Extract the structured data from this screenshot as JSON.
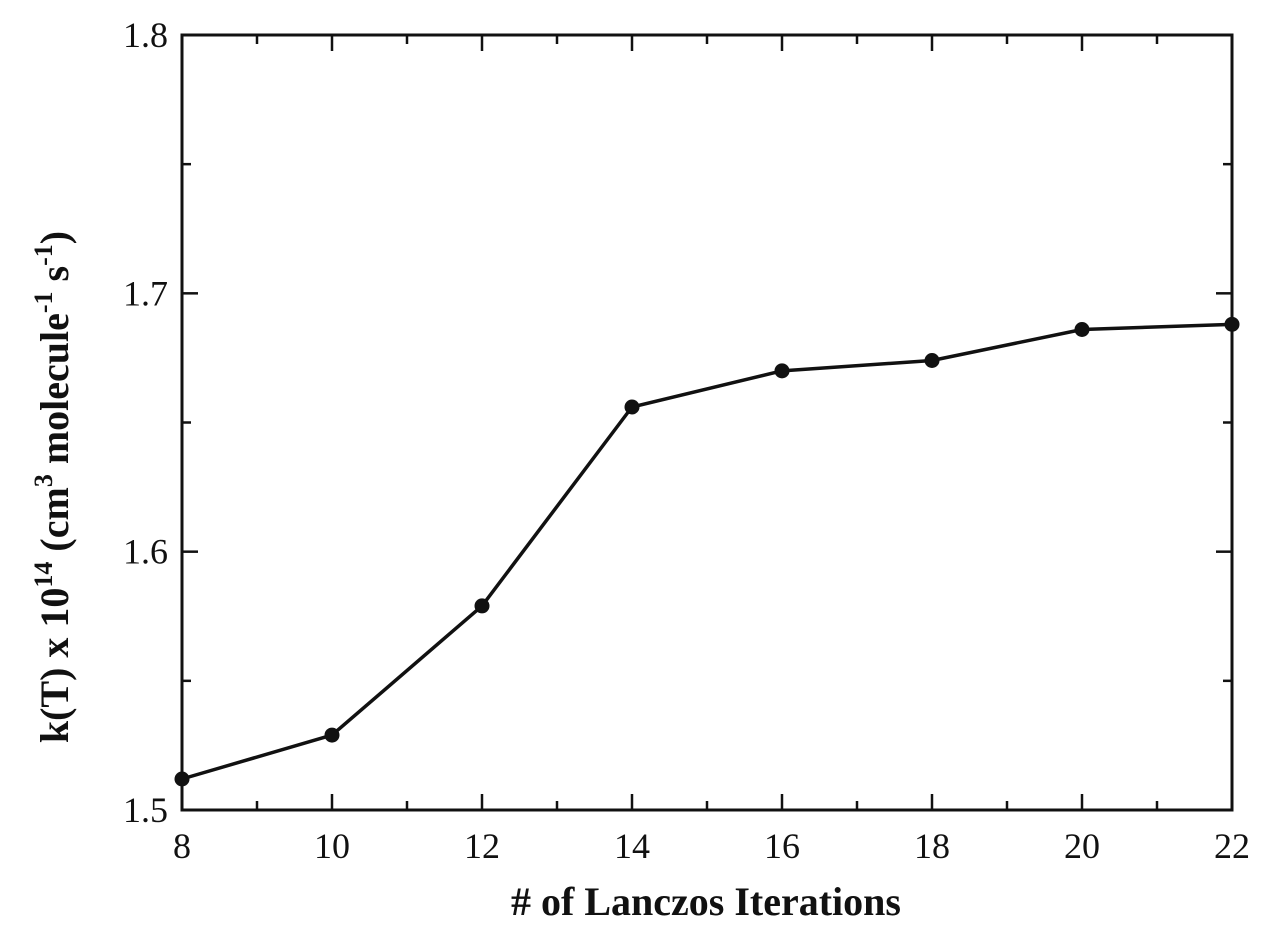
{
  "chart_data": {
    "type": "line",
    "x": [
      8,
      10,
      12,
      14,
      16,
      18,
      20,
      22
    ],
    "series": [
      {
        "values": [
          1.512,
          1.529,
          1.579,
          1.656,
          1.67,
          1.674,
          1.686,
          1.688
        ],
        "color": "#111111",
        "marker": "filled-circle"
      }
    ],
    "xlim": [
      8,
      22
    ],
    "ylim": [
      1.5,
      1.8
    ],
    "x_ticks": [
      "8",
      "10",
      "12",
      "14",
      "16",
      "18",
      "20",
      "22"
    ],
    "y_ticks": [
      "1.5",
      "1.6",
      "1.7",
      "1.8"
    ],
    "xlabel": "# of Lanczos Iterations",
    "ylabel": {
      "part1": "k(T) x 10",
      "exp1": "14",
      "part2": " (cm",
      "exp2": "3",
      "part3": " molecule",
      "exp3": "-1",
      "part4": " s",
      "exp4": "-1",
      "part5": ")"
    },
    "grid": false,
    "minor_ticks": true
  }
}
